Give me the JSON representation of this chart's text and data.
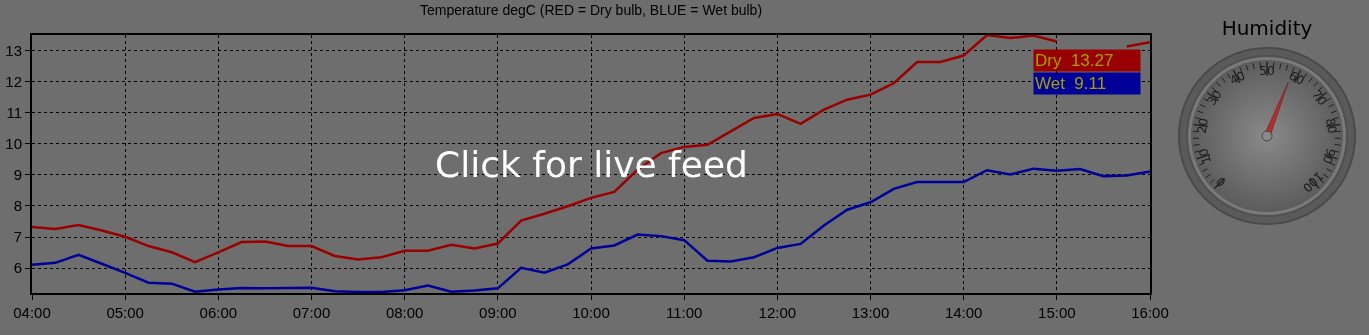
{
  "chart_data": [
    {
      "type": "line",
      "title": "Temperature degC (RED = Dry bulb, BLUE = Wet bulb)",
      "x": [
        4,
        4.25,
        4.5,
        4.75,
        5,
        5.25,
        5.5,
        5.75,
        6,
        6.25,
        6.5,
        6.75,
        7,
        7.25,
        7.5,
        7.75,
        8,
        8.25,
        8.5,
        8.75,
        9,
        9.25,
        9.5,
        9.75,
        10,
        10.25,
        10.5,
        10.75,
        11,
        11.25,
        11.5,
        11.75,
        12,
        12.25,
        12.5,
        12.75,
        13,
        13.25,
        13.5,
        13.75,
        14,
        14.25,
        14.5,
        14.75,
        15,
        15.25,
        15.5,
        15.75,
        16
      ],
      "series": [
        {
          "name": "Dry  13.27",
          "color": "#990000",
          "values": [
            7.32,
            7.26,
            7.39,
            7.21,
            7.01,
            6.71,
            6.51,
            6.19,
            6.51,
            6.84,
            6.86,
            6.71,
            6.71,
            6.39,
            6.28,
            6.35,
            6.56,
            6.56,
            6.75,
            6.63,
            6.79,
            7.53,
            7.75,
            7.99,
            8.26,
            8.45,
            9.17,
            9.7,
            9.9,
            9.97,
            10.4,
            10.83,
            10.96,
            10.64,
            11.1,
            11.42,
            11.58,
            11.95,
            12.63,
            12.63,
            12.84,
            13.5,
            13.4,
            13.48,
            13.29,
            null,
            null,
            13.13,
            13.27
          ]
        },
        {
          "name": "Wet  9.11",
          "color": "#000099",
          "values": [
            6.11,
            6.17,
            6.43,
            6.14,
            5.85,
            5.53,
            5.5,
            5.24,
            5.31,
            5.36,
            5.35,
            5.36,
            5.37,
            5.26,
            5.23,
            5.23,
            5.29,
            5.44,
            5.24,
            5.28,
            5.35,
            6.01,
            5.85,
            6.12,
            6.63,
            6.73,
            7.08,
            7.03,
            6.9,
            6.24,
            6.21,
            6.35,
            6.65,
            6.78,
            7.37,
            7.88,
            8.12,
            8.55,
            8.77,
            8.77,
            8.77,
            9.15,
            9.01,
            9.2,
            9.13,
            9.19,
            8.96,
            8.98,
            9.11
          ]
        }
      ],
      "xlim": [
        4,
        16
      ],
      "xticks": [
        {
          "value": 4,
          "label": "04:00"
        },
        {
          "value": 5,
          "label": "05:00"
        },
        {
          "value": 6,
          "label": "06:00"
        },
        {
          "value": 7,
          "label": "07:00"
        },
        {
          "value": 8,
          "label": "08:00"
        },
        {
          "value": 9,
          "label": "09:00"
        },
        {
          "value": 10,
          "label": "10:00"
        },
        {
          "value": 11,
          "label": "11:00"
        },
        {
          "value": 12,
          "label": "12:00"
        },
        {
          "value": 13,
          "label": "13:00"
        },
        {
          "value": 14,
          "label": "14:00"
        },
        {
          "value": 15,
          "label": "15:00"
        },
        {
          "value": 16,
          "label": "16:00"
        }
      ],
      "ylim": [
        5.2,
        13.5
      ],
      "yticks": [
        6,
        7,
        8,
        9,
        10,
        11,
        12,
        13
      ],
      "grid": true,
      "marker": "none",
      "line_style": "solid",
      "annotations": [
        "Click for live feed"
      ]
    },
    {
      "type": "other",
      "title": "Humidity",
      "annotations": [
        "0",
        "10",
        "20",
        "30",
        "40",
        "50",
        "60",
        "70",
        "80",
        "90",
        "100"
      ]
    }
  ]
}
